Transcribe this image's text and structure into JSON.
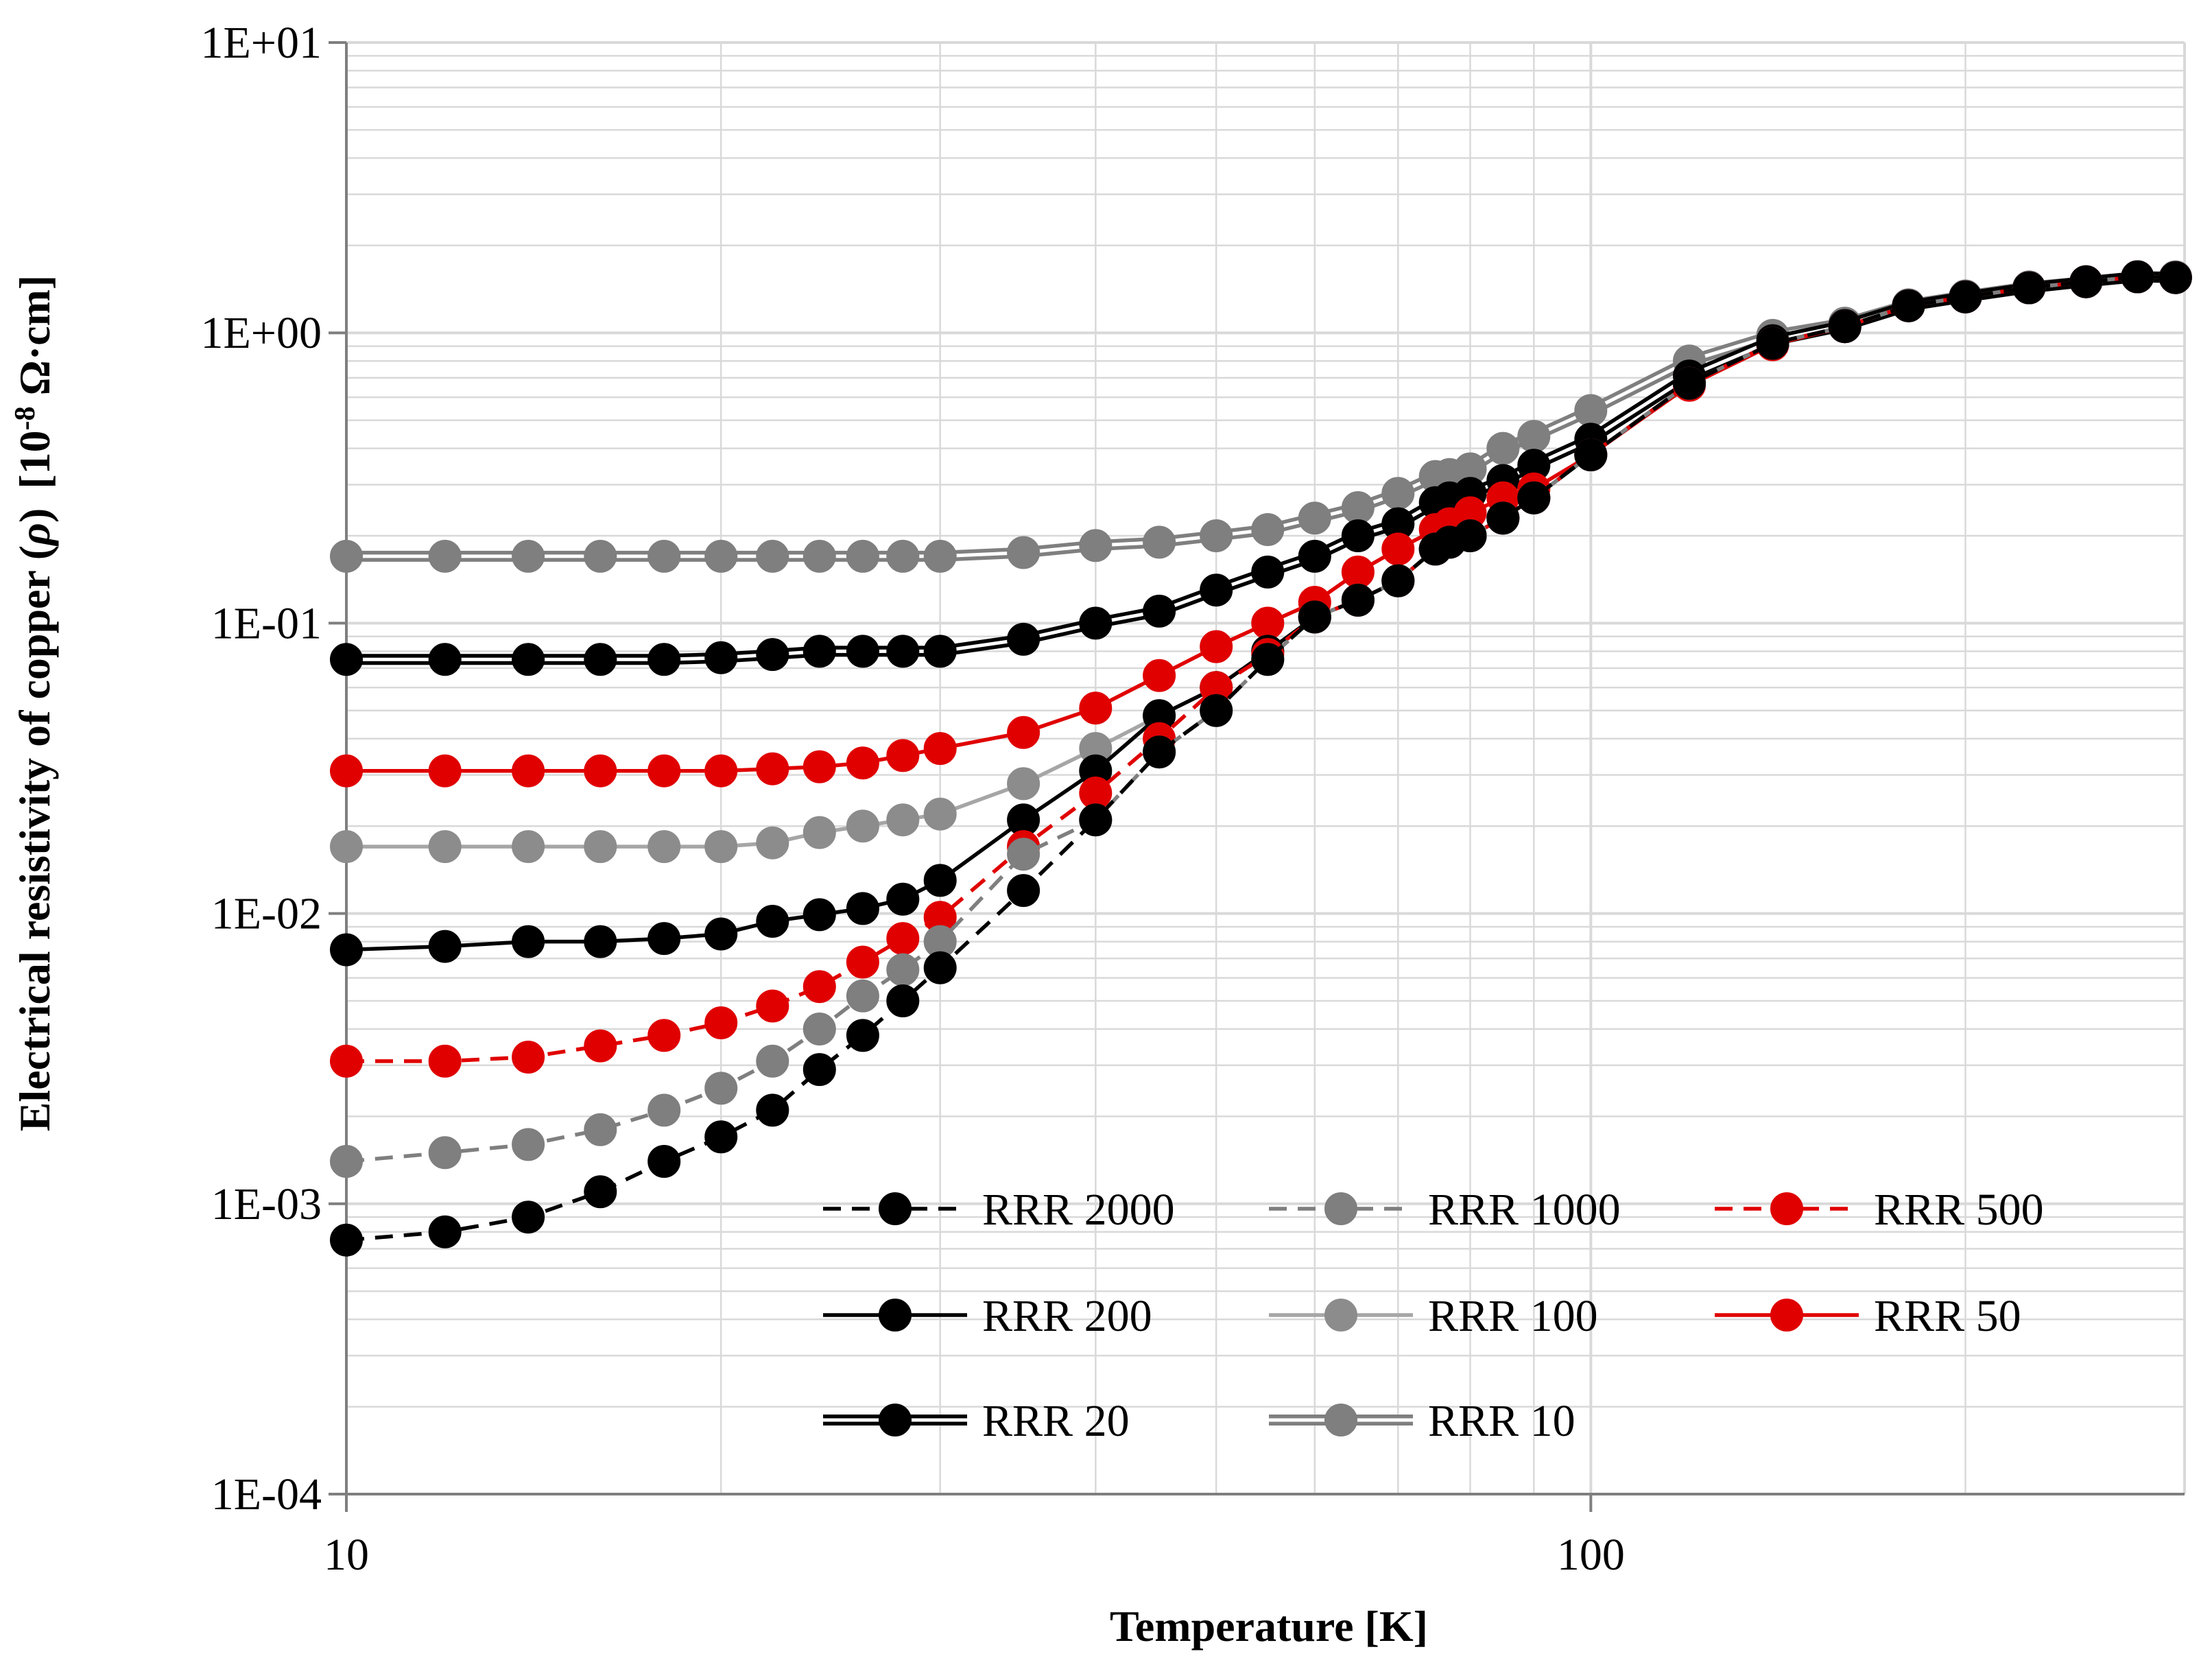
{
  "chart_data": {
    "type": "line",
    "title": "",
    "xlabel": "Temperature [K]",
    "ylabel_main": "Electrical resistivity of copper (",
    "ylabel_rho": "ρ",
    "ylabel_close": ")",
    "ylabel_unit_base": "[10",
    "ylabel_unit_exp": "-8",
    "ylabel_unit_tail": " Ω·cm]",
    "xscale": "log",
    "yscale": "log",
    "xlim": [
      10,
      300
    ],
    "ylim": [
      0.0001,
      10
    ],
    "x_tick_labels": [
      {
        "value": 10,
        "label": "10"
      },
      {
        "value": 100,
        "label": "100"
      }
    ],
    "y_tick_labels": [
      {
        "value": 10,
        "label": "1E+01"
      },
      {
        "value": 1,
        "label": "1E+00"
      },
      {
        "value": 0.1,
        "label": "1E-01"
      },
      {
        "value": 0.01,
        "label": "1E-02"
      },
      {
        "value": 0.001,
        "label": "1E-03"
      },
      {
        "value": 0.0001,
        "label": "1E-04"
      }
    ],
    "grid": true,
    "legend_position": "bottom-right",
    "colors": {
      "black": "#000000",
      "gray": "#7f7f7f",
      "lightgray": "#a6a6a6",
      "red": "#e00000",
      "grid": "#d9d9d9"
    },
    "series": [
      {
        "name": "RRR 2000",
        "style": "dashed",
        "color": "#000000",
        "marker": "#000000",
        "x": [
          10,
          12,
          14,
          16,
          18,
          20,
          22,
          24,
          26,
          28,
          30,
          35,
          40,
          45,
          50,
          55,
          60,
          65,
          70,
          75,
          77,
          80,
          85,
          90,
          100,
          120,
          140,
          160,
          180,
          200,
          225,
          250,
          275,
          295
        ],
        "y": [
          0.00075,
          0.0008,
          0.0009,
          0.0011,
          0.0014,
          0.0017,
          0.0021,
          0.0029,
          0.0038,
          0.005,
          0.0065,
          0.012,
          0.021,
          0.036,
          0.05,
          0.075,
          0.105,
          0.12,
          0.14,
          0.18,
          0.19,
          0.2,
          0.23,
          0.27,
          0.38,
          0.67,
          0.92,
          1.05,
          1.24,
          1.33,
          1.43,
          1.5,
          1.56,
          1.55
        ]
      },
      {
        "name": "RRR 1000",
        "style": "dashed",
        "color": "#7f7f7f",
        "marker": "#7f7f7f",
        "x": [
          10,
          12,
          14,
          16,
          18,
          20,
          22,
          24,
          26,
          28,
          30,
          35,
          40,
          45,
          50,
          55,
          60,
          65,
          70,
          75,
          77,
          80,
          85,
          90,
          100,
          120,
          140,
          160,
          180,
          200,
          225,
          250,
          275,
          295
        ],
        "y": [
          0.0014,
          0.0015,
          0.0016,
          0.0018,
          0.0021,
          0.0025,
          0.0031,
          0.004,
          0.0052,
          0.0064,
          0.008,
          0.016,
          0.021,
          0.036,
          0.05,
          0.075,
          0.105,
          0.12,
          0.14,
          0.18,
          0.19,
          0.2,
          0.23,
          0.27,
          0.38,
          0.67,
          0.92,
          1.05,
          1.24,
          1.33,
          1.43,
          1.5,
          1.56,
          1.55
        ]
      },
      {
        "name": "RRR 500",
        "style": "dashed",
        "color": "#e00000",
        "marker": "#e00000",
        "x": [
          10,
          12,
          14,
          16,
          18,
          20,
          22,
          24,
          26,
          28,
          30,
          35,
          40,
          45,
          50,
          55,
          60,
          65,
          70,
          75,
          77,
          80,
          85,
          90,
          100,
          120,
          140,
          160,
          180,
          200,
          225,
          250,
          275,
          295
        ],
        "y": [
          0.0031,
          0.0031,
          0.0032,
          0.0035,
          0.0038,
          0.0042,
          0.0048,
          0.0056,
          0.0068,
          0.0082,
          0.0097,
          0.017,
          0.026,
          0.04,
          0.06,
          0.078,
          0.105,
          0.12,
          0.14,
          0.18,
          0.19,
          0.2,
          0.23,
          0.27,
          0.38,
          0.67,
          0.92,
          1.05,
          1.24,
          1.33,
          1.43,
          1.5,
          1.56,
          1.55
        ]
      },
      {
        "name": "RRR 200",
        "style": "solid",
        "color": "#000000",
        "marker": "#000000",
        "x": [
          10,
          12,
          14,
          16,
          18,
          20,
          22,
          24,
          26,
          28,
          30,
          35,
          40,
          45,
          50,
          55,
          60,
          65,
          70,
          75,
          77,
          80,
          85,
          90,
          100,
          120,
          140,
          160,
          180,
          200,
          225,
          250,
          275,
          295
        ],
        "y": [
          0.0075,
          0.0077,
          0.008,
          0.008,
          0.0082,
          0.0085,
          0.0094,
          0.0099,
          0.0104,
          0.0112,
          0.013,
          0.021,
          0.031,
          0.048,
          0.06,
          0.08,
          0.105,
          0.12,
          0.14,
          0.18,
          0.19,
          0.2,
          0.23,
          0.27,
          0.38,
          0.67,
          0.92,
          1.05,
          1.24,
          1.33,
          1.43,
          1.5,
          1.56,
          1.55
        ]
      },
      {
        "name": "RRR 100",
        "style": "solid",
        "color": "#a6a6a6",
        "marker": "#8c8c8c",
        "x": [
          10,
          12,
          14,
          16,
          18,
          20,
          22,
          24,
          26,
          28,
          30,
          35,
          40,
          45,
          50,
          55,
          60,
          65,
          70,
          75,
          77,
          80,
          85,
          90,
          100,
          120,
          140,
          160,
          180,
          200,
          225,
          250,
          275,
          295
        ],
        "y": [
          0.017,
          0.017,
          0.017,
          0.017,
          0.017,
          0.017,
          0.0175,
          0.019,
          0.02,
          0.021,
          0.022,
          0.028,
          0.037,
          0.048,
          0.06,
          0.08,
          0.105,
          0.12,
          0.14,
          0.18,
          0.19,
          0.2,
          0.23,
          0.27,
          0.38,
          0.67,
          0.92,
          1.05,
          1.24,
          1.33,
          1.43,
          1.5,
          1.56,
          1.55
        ]
      },
      {
        "name": "RRR 50",
        "style": "solid",
        "color": "#e00000",
        "marker": "#e00000",
        "x": [
          10,
          12,
          14,
          16,
          18,
          20,
          22,
          24,
          26,
          28,
          30,
          35,
          40,
          45,
          50,
          55,
          60,
          65,
          70,
          75,
          77,
          80,
          85,
          90,
          100,
          120,
          140,
          160,
          180,
          200,
          225,
          250,
          275,
          295
        ],
        "y": [
          0.031,
          0.031,
          0.031,
          0.031,
          0.031,
          0.031,
          0.0315,
          0.032,
          0.033,
          0.035,
          0.037,
          0.042,
          0.051,
          0.066,
          0.083,
          0.1,
          0.118,
          0.15,
          0.18,
          0.21,
          0.22,
          0.24,
          0.27,
          0.29,
          0.38,
          0.66,
          0.91,
          1.05,
          1.24,
          1.33,
          1.43,
          1.5,
          1.56,
          1.55
        ]
      },
      {
        "name": "RRR 20",
        "style": "double",
        "color": "#000000",
        "marker": "#000000",
        "x": [
          10,
          12,
          14,
          16,
          18,
          20,
          22,
          24,
          26,
          28,
          30,
          35,
          40,
          45,
          50,
          55,
          60,
          65,
          70,
          75,
          77,
          80,
          85,
          90,
          100,
          120,
          140,
          160,
          180,
          200,
          225,
          250,
          275,
          295
        ],
        "y": [
          0.075,
          0.075,
          0.075,
          0.075,
          0.075,
          0.076,
          0.078,
          0.08,
          0.08,
          0.08,
          0.08,
          0.088,
          0.1,
          0.11,
          0.13,
          0.15,
          0.17,
          0.2,
          0.22,
          0.26,
          0.27,
          0.28,
          0.31,
          0.35,
          0.43,
          0.71,
          0.94,
          1.06,
          1.24,
          1.33,
          1.43,
          1.5,
          1.56,
          1.55
        ]
      },
      {
        "name": "RRR 10",
        "style": "double",
        "color": "#7f7f7f",
        "marker": "#7f7f7f",
        "x": [
          10,
          12,
          14,
          16,
          18,
          20,
          22,
          24,
          26,
          28,
          30,
          35,
          40,
          45,
          50,
          55,
          60,
          65,
          70,
          75,
          77,
          80,
          85,
          90,
          100,
          120,
          140,
          160,
          180,
          200,
          225,
          250,
          275,
          295
        ],
        "y": [
          0.17,
          0.17,
          0.17,
          0.17,
          0.17,
          0.17,
          0.17,
          0.17,
          0.17,
          0.17,
          0.17,
          0.175,
          0.185,
          0.19,
          0.2,
          0.21,
          0.23,
          0.25,
          0.28,
          0.32,
          0.325,
          0.34,
          0.4,
          0.44,
          0.54,
          0.8,
          0.98,
          1.08,
          1.25,
          1.34,
          1.44,
          1.5,
          1.56,
          1.56
        ]
      }
    ]
  }
}
